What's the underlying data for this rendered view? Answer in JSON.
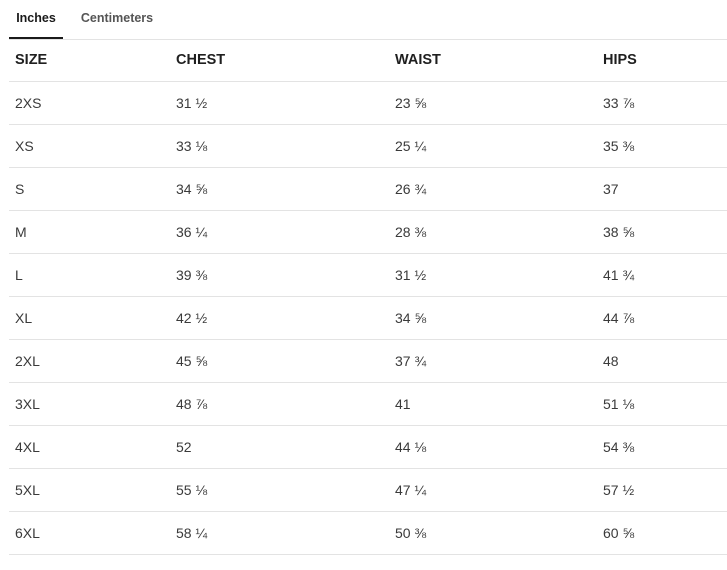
{
  "tabs": [
    {
      "label": "Inches",
      "active": true
    },
    {
      "label": "Centimeters",
      "active": false
    }
  ],
  "table": {
    "headers": [
      "SIZE",
      "CHEST",
      "WAIST",
      "HIPS"
    ],
    "rows": [
      [
        "2XS",
        "31 ½",
        "23 ⅝",
        "33 ⅞"
      ],
      [
        "XS",
        "33 ⅛",
        "25 ¼",
        "35 ⅜"
      ],
      [
        "S",
        "34 ⅝",
        "26 ¾",
        "37"
      ],
      [
        "M",
        "36 ¼",
        "28 ⅜",
        "38 ⅝"
      ],
      [
        "L",
        "39 ⅜",
        "31 ½",
        "41 ¾"
      ],
      [
        "XL",
        "42 ½",
        "34 ⅝",
        "44 ⅞"
      ],
      [
        "2XL",
        "45 ⅝",
        "37 ¾",
        "48"
      ],
      [
        "3XL",
        "48 ⅞",
        "41",
        "51 ⅛"
      ],
      [
        "4XL",
        "52",
        "44 ⅛",
        "54 ⅜"
      ],
      [
        "5XL",
        "55 ⅛",
        "47 ¼",
        "57 ½"
      ],
      [
        "6XL",
        "58 ¼",
        "50 ⅜",
        "60 ⅝"
      ]
    ]
  }
}
